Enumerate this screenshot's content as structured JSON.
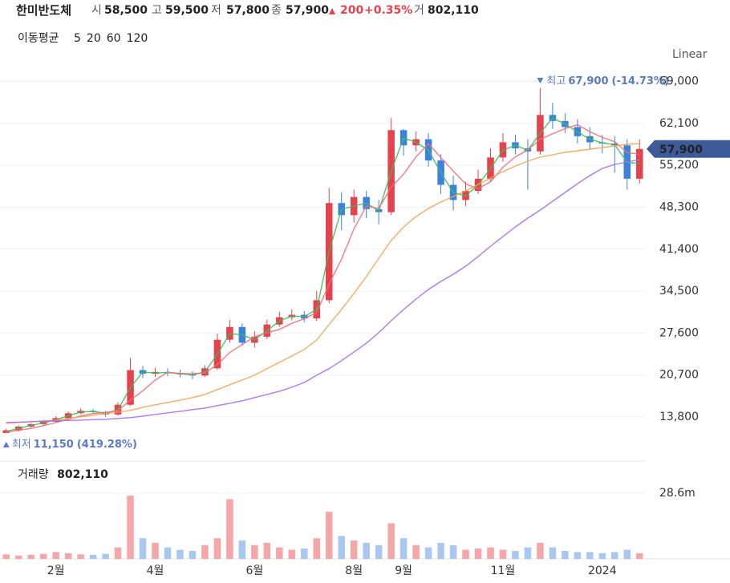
{
  "header": {
    "name": "한미반도체",
    "open": {
      "label": "시",
      "value": "58,500"
    },
    "high": {
      "label": "고",
      "value": "59,500"
    },
    "low": {
      "label": "저",
      "value": "57,800"
    },
    "close": {
      "label": "종",
      "value": "57,900"
    },
    "change": "200",
    "change_pct": "+0.35%",
    "volume": {
      "label": "거",
      "value": "802,110"
    }
  },
  "chart_data": [
    {
      "type": "candlestick",
      "legend_title": "이동평균",
      "scale": "Linear",
      "categories": [
        null,
        null,
        null,
        null,
        "2월",
        null,
        null,
        null,
        null,
        null,
        null,
        null,
        "4월",
        null,
        null,
        null,
        null,
        null,
        null,
        null,
        "6월",
        null,
        null,
        null,
        null,
        null,
        null,
        null,
        "8월",
        null,
        null,
        null,
        "9월",
        null,
        null,
        null,
        null,
        null,
        null,
        null,
        "11월",
        null,
        null,
        null,
        null,
        null,
        null,
        null,
        "2024",
        null,
        null,
        null
      ],
      "open": [
        11150,
        11600,
        12200,
        12600,
        13000,
        13600,
        14400,
        14800,
        14600,
        14200,
        15800,
        21500,
        20900,
        21200,
        21000,
        20800,
        20600,
        21800,
        26500,
        28600,
        26000,
        27000,
        29000,
        30200,
        30600,
        30000,
        33000,
        49000,
        47000,
        50000,
        48000,
        47500,
        61000,
        58500,
        59500,
        56000,
        52000,
        49500,
        51000,
        53000,
        56500,
        59000,
        58000,
        57500,
        63500,
        62500,
        61500,
        60000,
        59000,
        58800,
        58500,
        53000
      ],
      "high": [
        11800,
        12400,
        12800,
        13300,
        13900,
        14700,
        15200,
        15100,
        14800,
        16200,
        23500,
        22200,
        21900,
        21800,
        21600,
        21300,
        22300,
        27500,
        29800,
        29200,
        27900,
        29800,
        31100,
        31500,
        31200,
        34500,
        51500,
        50800,
        51200,
        51000,
        49500,
        63000,
        61200,
        60800,
        60500,
        57000,
        53500,
        52500,
        54500,
        58000,
        60500,
        60200,
        59500,
        67900,
        65500,
        63800,
        62800,
        61500,
        60200,
        60000,
        59500,
        59500
      ],
      "low": [
        11150,
        11400,
        12000,
        12400,
        12800,
        13400,
        14200,
        14300,
        13800,
        14000,
        15600,
        20200,
        20400,
        20500,
        20300,
        20000,
        20400,
        21500,
        26000,
        25500,
        25200,
        26600,
        28600,
        29700,
        29400,
        29600,
        32500,
        44500,
        45800,
        46500,
        45500,
        47000,
        56800,
        57500,
        55000,
        50500,
        47800,
        48500,
        50500,
        52500,
        55800,
        57000,
        51200,
        57000,
        61200,
        60500,
        58800,
        57800,
        57200,
        54000,
        51200,
        52200
      ],
      "close": [
        11600,
        12200,
        12600,
        13000,
        13600,
        14400,
        14800,
        14600,
        14200,
        15800,
        21500,
        20900,
        21200,
        21000,
        20800,
        20600,
        21800,
        26500,
        28600,
        26000,
        27000,
        29000,
        30200,
        30600,
        30000,
        33000,
        49000,
        47000,
        50000,
        48000,
        47500,
        61000,
        58500,
        59500,
        56000,
        52000,
        49500,
        51000,
        53000,
        56500,
        59000,
        58000,
        57500,
        63500,
        62500,
        61500,
        60000,
        59000,
        58800,
        58500,
        53000,
        57900
      ],
      "up_color": "#e5424d",
      "down_color": "#3b82e0",
      "series": [
        {
          "name": "5",
          "color": "#3dbd5b",
          "values": [
            11400,
            11900,
            12400,
            12800,
            13300,
            14000,
            14600,
            14700,
            14400,
            15000,
            18600,
            21200,
            21000,
            21100,
            20900,
            20700,
            21200,
            24100,
            27500,
            27300,
            26500,
            28000,
            29600,
            30400,
            30300,
            31500,
            41000,
            48000,
            48500,
            49000,
            47700,
            54200,
            59700,
            59000,
            57700,
            54000,
            50700,
            50200,
            52000,
            54700,
            57700,
            58500,
            57700,
            60500,
            63000,
            62000,
            60700,
            59500,
            58900,
            58600,
            55700,
            55500
          ]
        },
        {
          "name": "20",
          "color": "#ef6f78",
          "values": [
            11300,
            11600,
            11900,
            12350,
            12850,
            13400,
            13950,
            14350,
            14500,
            14850,
            16550,
            18100,
            19850,
            21150,
            20950,
            20900,
            21050,
            22400,
            24400,
            25700,
            27000,
            27650,
            28200,
            29200,
            29950,
            30950,
            35650,
            39750,
            44750,
            48500,
            48100,
            51600,
            53750,
            56600,
            58750,
            56500,
            54250,
            52150,
            51350,
            52500,
            54900,
            56600,
            57750,
            59500,
            60400,
            61250,
            61900,
            60750,
            59800,
            59100,
            57300,
            57050
          ]
        },
        {
          "name": "60",
          "color": "#f5a25a",
          "values": [
            12745,
            12880,
            13010,
            13140,
            13270,
            13540,
            13800,
            14060,
            14330,
            14590,
            14860,
            15380,
            15780,
            16170,
            16570,
            16970,
            17490,
            18290,
            19080,
            19870,
            20660,
            21720,
            22770,
            23830,
            24880,
            26470,
            28980,
            31480,
            34120,
            36890,
            39920,
            42820,
            45070,
            46780,
            48100,
            49160,
            50080,
            51000,
            52060,
            53110,
            54170,
            55090,
            55890,
            56550,
            56940,
            57340,
            57600,
            57870,
            58130,
            58390,
            58660,
            58790
          ]
        },
        {
          "name": "120",
          "color": "#a56cf0",
          "values": [
            12880,
            12940,
            13010,
            13070,
            13140,
            13210,
            13270,
            13340,
            13400,
            13540,
            13670,
            13930,
            14200,
            14460,
            14720,
            14990,
            15250,
            15650,
            16040,
            16440,
            16970,
            17490,
            18020,
            18680,
            19470,
            20660,
            21720,
            23040,
            24490,
            25940,
            27650,
            29630,
            31480,
            33190,
            34770,
            36100,
            37280,
            38600,
            40190,
            41900,
            43490,
            45070,
            46520,
            47840,
            49290,
            50740,
            52190,
            53510,
            54700,
            55360,
            55750,
            56150
          ]
        }
      ],
      "ylim": [
        8500,
        71200
      ],
      "yticks": [
        {
          "value": 13800,
          "label": "13,800"
        },
        {
          "value": 20700,
          "label": "20,700"
        },
        {
          "value": 27600,
          "label": "27,600"
        },
        {
          "value": 34500,
          "label": "34,500"
        },
        {
          "value": 41400,
          "label": "41,400"
        },
        {
          "value": 48300,
          "label": "48,300"
        },
        {
          "value": 55200,
          "label": "55,200"
        },
        {
          "value": 62100,
          "label": "62,100"
        },
        {
          "value": 69000,
          "label": "69,000"
        }
      ],
      "grid": true,
      "high_annotation": {
        "label": "최고",
        "value": {
          "value": 67900,
          "label": "67,900"
        },
        "change": "(-14.73%)"
      },
      "low_annotation": {
        "label": "최저",
        "value": {
          "value": 11150,
          "label": "11,150"
        },
        "change": "(419.28%)"
      },
      "last_price": {
        "value": 57900,
        "label": "57,900"
      },
      "last_price_color": "#3d5a99"
    },
    {
      "type": "bar",
      "title": "거래량",
      "latest": {
        "value": 802110,
        "label": "802,110"
      },
      "values": [
        2000000,
        1500000,
        1800000,
        2200000,
        3000000,
        2500000,
        2000000,
        1800000,
        2200000,
        5000000,
        27500000,
        9000000,
        7000000,
        5000000,
        4000000,
        3500000,
        6000000,
        9000000,
        26000000,
        8000000,
        6000000,
        7000000,
        5000000,
        4000000,
        4500000,
        9000000,
        20500000,
        10000000,
        8000000,
        7000000,
        6000000,
        15500000,
        9000000,
        6000000,
        5000000,
        7000000,
        6000000,
        4000000,
        4500000,
        5000000,
        4000000,
        3500000,
        5000000,
        7000000,
        5000000,
        3500000,
        3000000,
        3000000,
        2500000,
        3000000,
        4000000,
        2500000
      ],
      "up_color": "#f4a6a9",
      "down_color": "#a8c8ef",
      "ylim": [
        0,
        40800000
      ],
      "yticks": [
        {
          "value": 28600000,
          "label": "28.6m"
        }
      ],
      "grid": true
    }
  ]
}
